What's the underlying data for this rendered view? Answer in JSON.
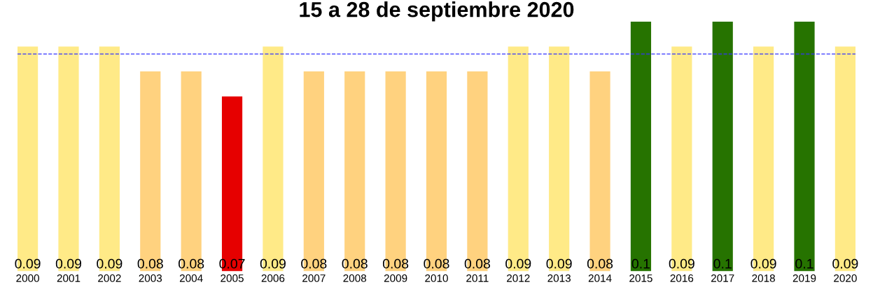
{
  "chart_data": {
    "type": "bar",
    "title": "15 a 28 de septiembre 2020",
    "categories": [
      "2000",
      "2001",
      "2002",
      "2003",
      "2004",
      "2005",
      "2006",
      "2007",
      "2008",
      "2009",
      "2010",
      "2011",
      "2012",
      "2013",
      "2014",
      "2015",
      "2016",
      "2017",
      "2018",
      "2019",
      "2020"
    ],
    "values": [
      0.09,
      0.09,
      0.09,
      0.08,
      0.08,
      0.07,
      0.09,
      0.08,
      0.08,
      0.08,
      0.08,
      0.08,
      0.09,
      0.09,
      0.08,
      0.1,
      0.09,
      0.1,
      0.09,
      0.1,
      0.09
    ],
    "colors": [
      "#ffea87",
      "#ffea87",
      "#ffea87",
      "#ffd27f",
      "#ffd27f",
      "#e60000",
      "#ffea87",
      "#ffd27f",
      "#ffd27f",
      "#ffd27f",
      "#ffd27f",
      "#ffd27f",
      "#ffea87",
      "#ffea87",
      "#ffd27f",
      "#267300",
      "#ffea87",
      "#267300",
      "#ffea87",
      "#267300",
      "#ffea87"
    ],
    "data_labels": true,
    "ref_lines": [
      {
        "axis": "y",
        "value": 0.087,
        "color": "#3333ff",
        "line_style": "dashed"
      }
    ],
    "grid": false,
    "legend": false
  }
}
